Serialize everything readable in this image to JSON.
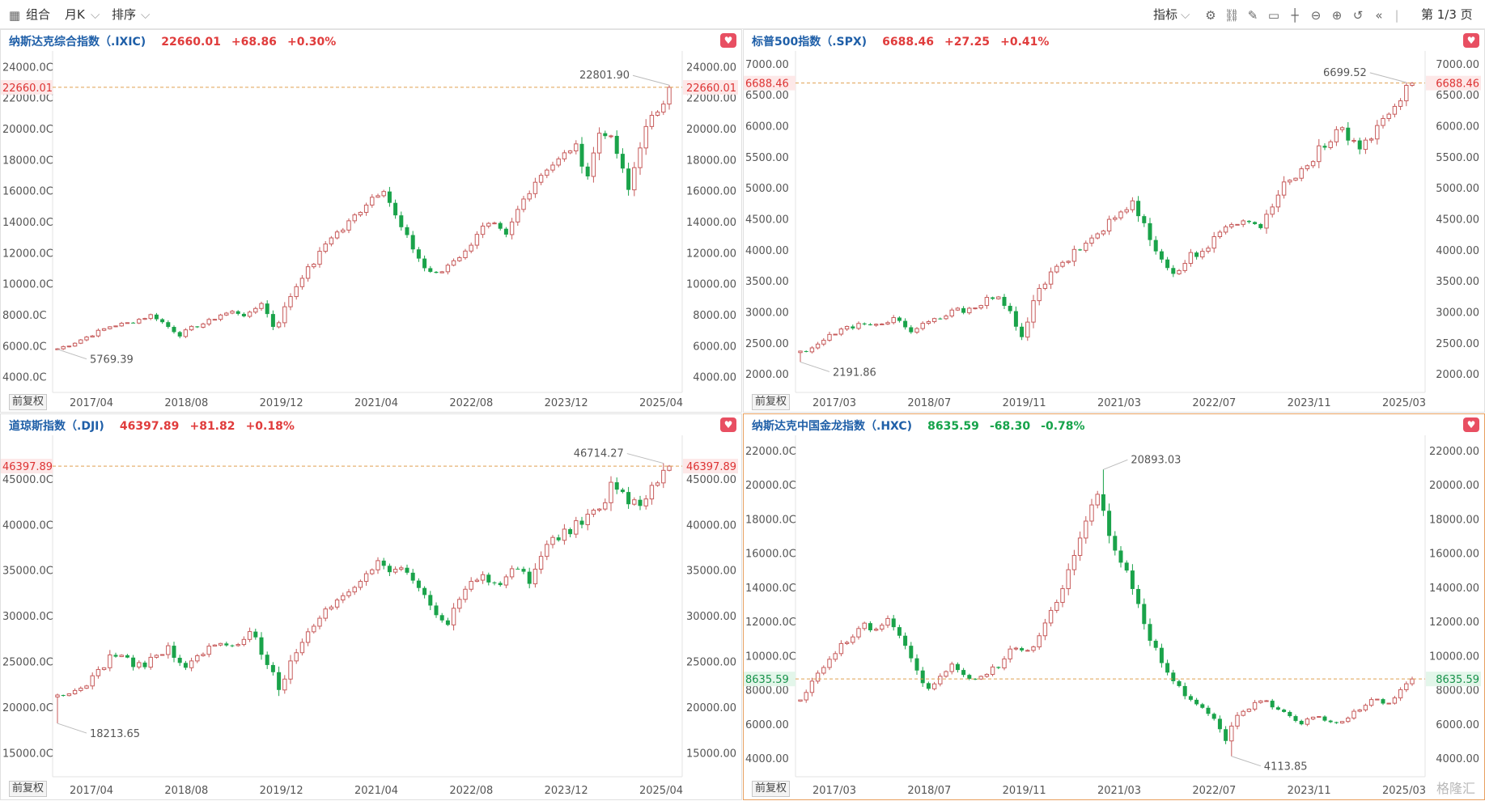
{
  "toolbar": {
    "combo_label": "组合",
    "period_label": "月K",
    "sort_label": "排序",
    "indicator_label": "指标",
    "page_label": "第 1/3 页",
    "icons": [
      "gear-icon",
      "link-icon",
      "pen-icon",
      "message-icon",
      "crosshair-icon",
      "zoom-out-icon",
      "zoom-in-icon",
      "undo-icon",
      "double-left-icon"
    ]
  },
  "adjust_label": "前复权",
  "watermark": "格隆汇",
  "colors": {
    "up": "#e03c3c",
    "down": "#16a34a",
    "up_candle": "#c75b5b",
    "down_candle": "#1aa34a",
    "price_line": "#e0a050"
  },
  "chart_data": [
    {
      "type": "candlestick",
      "title": "纳斯达克综合指数（.IXIC)",
      "price": "22660.01",
      "change": "+68.86",
      "pct": "+0.30%",
      "direction": "up",
      "ylim": [
        3300,
        24900
      ],
      "left_ticks": [
        "24000.0C",
        "22000.0C",
        "20000.0C",
        "18000.0C",
        "16000.0C",
        "14000.0C",
        "12000.0C",
        "10000.0C",
        "8000.0C",
        "6000.0C",
        "4000.0C"
      ],
      "right_ticks": [
        "24000.00",
        "22000.00",
        "20000.00",
        "18000.00",
        "16000.00",
        "14000.00",
        "12000.00",
        "10000.00",
        "8000.00",
        "6000.00",
        "4000.00"
      ],
      "tick_values": [
        24000,
        22000,
        20000,
        18000,
        16000,
        14000,
        12000,
        10000,
        8000,
        6000,
        4000
      ],
      "dates": [
        "2017/04",
        "2018/08",
        "2019/12",
        "2021/04",
        "2022/08",
        "2023/12",
        "2025/04"
      ],
      "current": {
        "value": 22660.01,
        "label": "22660.01"
      },
      "high": {
        "value": 22801.9,
        "label": "22801.90"
      },
      "low": {
        "value": 5769.39,
        "label": "5769.39"
      },
      "close_path": [
        5800,
        6100,
        6500,
        6900,
        7300,
        7400,
        7700,
        8000,
        7300,
        6700,
        7200,
        7500,
        8000,
        8200,
        7900,
        8800,
        7000,
        9000,
        10500,
        11500,
        13000,
        13500,
        14500,
        15500,
        16200,
        14000,
        12500,
        11000,
        10500,
        11500,
        12000,
        13500,
        13800,
        13000,
        15000,
        16500,
        17500,
        18000,
        19000,
        17000,
        20200,
        18800,
        16000,
        19500,
        21000,
        22660
      ],
      "bottom_label_y": 0
    },
    {
      "type": "candlestick",
      "title": "标普500指数（.SPX)",
      "price": "6688.46",
      "change": "+27.25",
      "pct": "+0.41%",
      "direction": "up",
      "ylim": [
        1780,
        7180
      ],
      "left_ticks": [
        "7000.00",
        "6500.00",
        "6000.00",
        "5500.00",
        "5000.00",
        "4500.00",
        "4000.00",
        "3500.00",
        "3000.00",
        "2500.00",
        "2000.00"
      ],
      "right_ticks": [
        "7000.00",
        "6500.00",
        "6000.00",
        "5500.00",
        "5000.00",
        "4500.00",
        "4000.00",
        "3500.00",
        "3000.00",
        "2500.00",
        "2000.00"
      ],
      "tick_values": [
        7000,
        6500,
        6000,
        5500,
        5000,
        4500,
        4000,
        3500,
        3000,
        2500,
        2000
      ],
      "dates": [
        "2017/03",
        "2018/07",
        "2019/11",
        "2021/03",
        "2022/07",
        "2023/11",
        "2025/03"
      ],
      "current": {
        "value": 6688.46,
        "label": "6688.46"
      },
      "high": {
        "value": 6699.52,
        "label": "6699.52"
      },
      "low": {
        "value": 2191.86,
        "label": "2191.86"
      },
      "close_path": [
        2350,
        2450,
        2600,
        2700,
        2800,
        2750,
        2850,
        2900,
        2650,
        2800,
        2900,
        3000,
        3050,
        3150,
        3250,
        3000,
        2600,
        3300,
        3600,
        3800,
        4000,
        4200,
        4400,
        4600,
        4750,
        4300,
        3800,
        3600,
        3900,
        4000,
        4200,
        4400,
        4550,
        4300,
        4800,
        5100,
        5300,
        5500,
        5800,
        6000,
        5600,
        5800,
        6200,
        6400,
        6688
      ],
      "bottom_label_y": 0
    },
    {
      "type": "candlestick",
      "title": "道琼斯指数（.DJI)",
      "price": "46397.89",
      "change": "+81.82",
      "pct": "+0.18%",
      "direction": "up",
      "ylim": [
        12900,
        49600
      ],
      "left_ticks": [
        "45000.0C",
        "40000.0C",
        "35000.0C",
        "30000.0C",
        "25000.0C",
        "20000.0C",
        "15000.0C"
      ],
      "right_ticks": [
        "45000.00",
        "40000.00",
        "35000.00",
        "30000.00",
        "25000.00",
        "20000.00",
        "15000.00"
      ],
      "tick_values": [
        45000,
        40000,
        35000,
        30000,
        25000,
        20000,
        15000
      ],
      "dates": [
        "2017/04",
        "2018/08",
        "2019/12",
        "2021/04",
        "2022/08",
        "2023/12",
        "2025/04"
      ],
      "current": {
        "value": 46397.89,
        "label": "46397.89"
      },
      "high": {
        "value": 46714.27,
        "label": "46714.27"
      },
      "low": {
        "value": 18213.65,
        "label": "18213.65"
      },
      "close_path": [
        21000,
        21500,
        22500,
        24000,
        26000,
        25000,
        24500,
        25500,
        26500,
        24000,
        25500,
        26500,
        27000,
        26500,
        28500,
        25000,
        22000,
        26000,
        28000,
        30000,
        31000,
        33000,
        34500,
        35500,
        35000,
        35500,
        33500,
        31000,
        29000,
        32000,
        34000,
        34000,
        33500,
        35500,
        34000,
        37500,
        38500,
        39500,
        40500,
        42000,
        44500,
        43000,
        42000,
        44500,
        46398
      ],
      "bottom_label_y": 0
    },
    {
      "type": "candlestick",
      "title": "纳斯达克中国金龙指数（.HXC)",
      "price": "8635.59",
      "change": "-68.30",
      "pct": "-0.78%",
      "direction": "down",
      "ylim": [
        3200,
        22800
      ],
      "left_ticks": [
        "22000.0C",
        "20000.0C",
        "18000.0C",
        "16000.0C",
        "14000.0C",
        "12000.0C",
        "10000.0C",
        "8000.00",
        "6000.00",
        "4000.00"
      ],
      "right_ticks": [
        "22000.00",
        "20000.00",
        "18000.00",
        "16000.00",
        "14000.00",
        "12000.00",
        "10000.00",
        "8000.00",
        "6000.00",
        "4000.00"
      ],
      "tick_values": [
        22000,
        20000,
        18000,
        16000,
        14000,
        12000,
        10000,
        8000,
        6000,
        4000
      ],
      "dates": [
        "2017/03",
        "2018/07",
        "2019/11",
        "2021/03",
        "2022/07",
        "2023/11",
        "2025/03"
      ],
      "current": {
        "value": 8635.59,
        "label": "8635.59"
      },
      "high": {
        "value": 20893.03,
        "label": "20893.03"
      },
      "low": {
        "value": 4113.85,
        "label": "4113.85"
      },
      "close_path": [
        7500,
        8500,
        9500,
        10500,
        11000,
        11800,
        11500,
        12000,
        11000,
        9500,
        8000,
        8500,
        9500,
        9000,
        8500,
        9000,
        9500,
        10500,
        10000,
        11000,
        12500,
        14000,
        16000,
        18000,
        19500,
        16500,
        15000,
        13000,
        11000,
        9500,
        8500,
        7500,
        7000,
        6500,
        5000,
        6500,
        7000,
        7500,
        7000,
        6500,
        6000,
        6500,
        6200,
        6000,
        6500,
        7000,
        7500,
        7000,
        8000,
        8636
      ],
      "bottom_label_y": 0
    }
  ]
}
